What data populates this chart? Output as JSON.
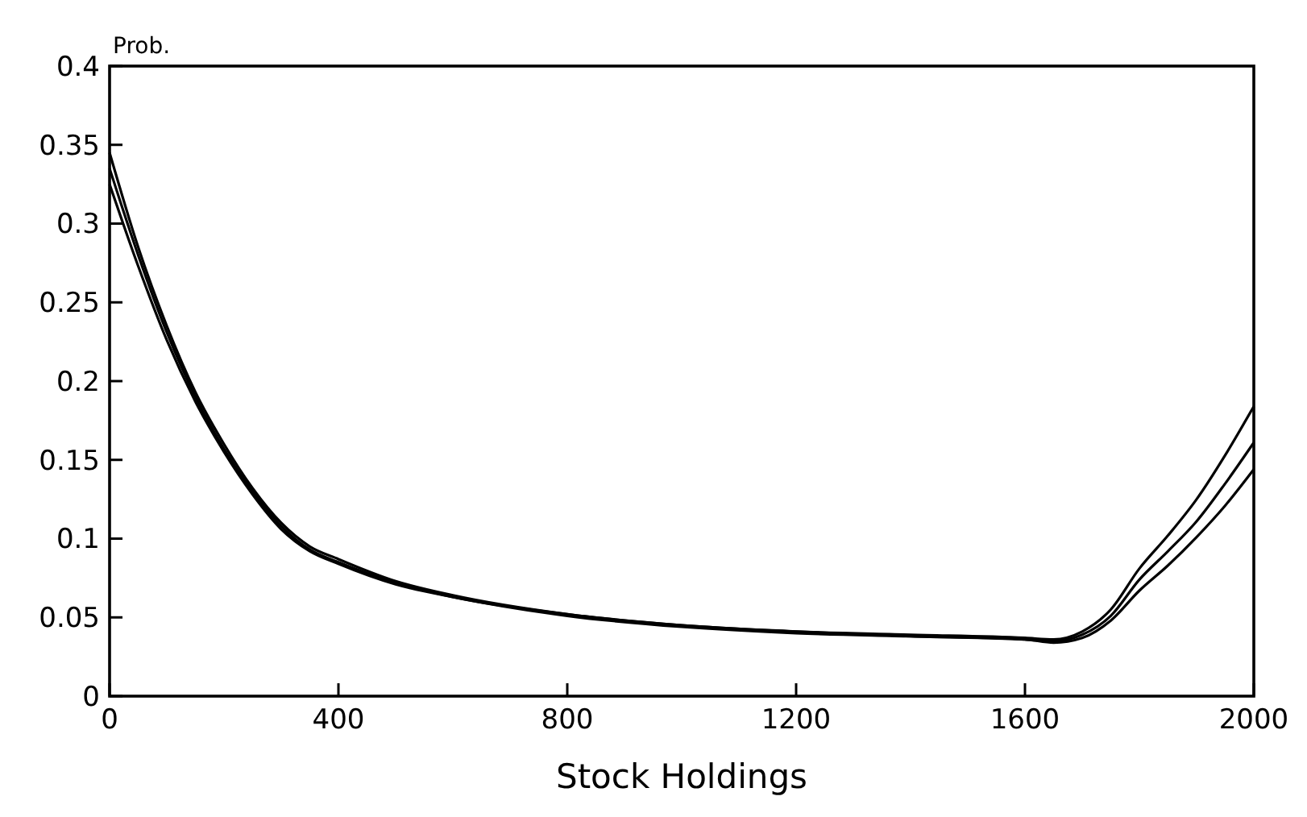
{
  "chart_data": {
    "type": "line",
    "xlabel": "Stock Holdings",
    "ylabel": "Prob.",
    "xlim": [
      0,
      2000
    ],
    "ylim": [
      0,
      0.4
    ],
    "xticks": [
      0,
      400,
      800,
      1200,
      1600,
      2000
    ],
    "yticks": [
      0,
      0.05,
      0.1,
      0.15,
      0.2,
      0.25,
      0.3,
      0.35,
      0.4
    ],
    "grid": false,
    "marker": "none",
    "line_style": "solid",
    "series": [
      {
        "color": "#000000",
        "x": [
          0,
          50,
          100,
          150,
          200,
          250,
          300,
          350,
          400,
          500,
          600,
          800,
          1000,
          1200,
          1400,
          1600,
          1650,
          1700,
          1750,
          1800,
          1850,
          1900,
          1950,
          2000
        ],
        "values": [
          0.345,
          0.285,
          0.235,
          0.193,
          0.16,
          0.132,
          0.11,
          0.095,
          0.087,
          0.073,
          0.064,
          0.052,
          0.045,
          0.041,
          0.039,
          0.037,
          0.036,
          0.041,
          0.055,
          0.081,
          0.102,
          0.125,
          0.153,
          0.184
        ]
      },
      {
        "color": "#000000",
        "x": [
          0,
          50,
          100,
          150,
          200,
          250,
          300,
          350,
          400,
          500,
          600,
          800,
          1000,
          1200,
          1400,
          1600,
          1650,
          1700,
          1750,
          1800,
          1850,
          1900,
          1950,
          2000
        ],
        "values": [
          0.335,
          0.28,
          0.231,
          0.19,
          0.157,
          0.13,
          0.108,
          0.093,
          0.085,
          0.072,
          0.063,
          0.052,
          0.045,
          0.041,
          0.038,
          0.036,
          0.035,
          0.039,
          0.051,
          0.074,
          0.092,
          0.111,
          0.135,
          0.161
        ]
      },
      {
        "color": "#000000",
        "x": [
          0,
          50,
          100,
          150,
          200,
          250,
          300,
          350,
          400,
          500,
          600,
          800,
          1000,
          1200,
          1400,
          1600,
          1650,
          1700,
          1750,
          1800,
          1850,
          1900,
          1950,
          2000
        ],
        "values": [
          0.325,
          0.273,
          0.226,
          0.187,
          0.155,
          0.128,
          0.106,
          0.092,
          0.084,
          0.071,
          0.063,
          0.051,
          0.044,
          0.04,
          0.038,
          0.036,
          0.034,
          0.037,
          0.048,
          0.067,
          0.083,
          0.101,
          0.121,
          0.144
        ]
      }
    ]
  }
}
